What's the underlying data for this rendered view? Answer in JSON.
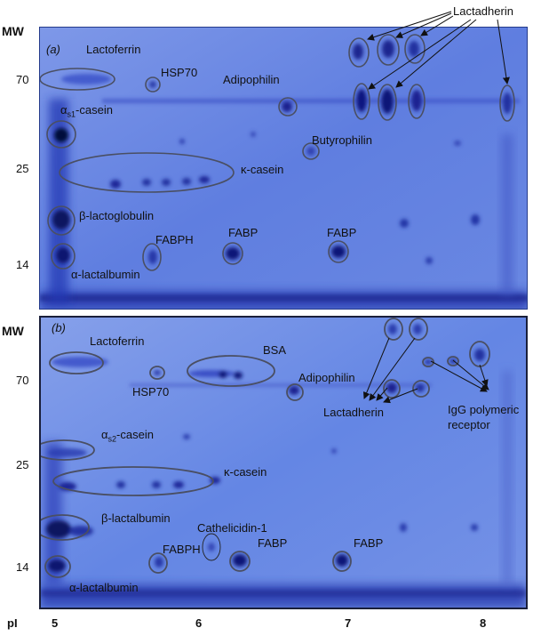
{
  "axis": {
    "mw_label": "MW",
    "pi_label": "pI",
    "pi_ticks": [
      "5",
      "6",
      "7",
      "8"
    ]
  },
  "panel_a": {
    "label": "(a)",
    "mw_ticks": [
      "70",
      "25",
      "14"
    ],
    "proteins": {
      "lactoferrin": "Lactoferrin",
      "hsp70": "HSP70",
      "adipophilin": "Adipophilin",
      "alpha_s1_casein": "α",
      "alpha_s1_sub": "s1",
      "alpha_s1_suffix": "-casein",
      "butyrophilin": "Butyrophilin",
      "kappa_casein": "κ-casein",
      "beta_lactoglobulin": "β-lactoglobulin",
      "fabph": "FABPH",
      "fabp_1": "FABP",
      "fabp_2": "FABP",
      "alpha_lactalbumin": "α-lactalbumin",
      "lactadherin": "Lactadherin"
    }
  },
  "panel_b": {
    "label": "(b)",
    "mw_ticks": [
      "70",
      "25",
      "14"
    ],
    "proteins": {
      "lactoferrin": "Lactoferrin",
      "bsa": "BSA",
      "hsp70": "HSP70",
      "adipophilin": "Adipophilin",
      "lactadherin": "Lactadherin",
      "igg_line1": "IgG polymeric",
      "igg_line2": "receptor",
      "alpha_s2_casein": "α",
      "alpha_s2_sub": "s2",
      "alpha_s2_suffix": "-casein",
      "kappa_casein": "κ-casein",
      "beta_lactalbumin": "β-lactalbumin",
      "cathelicidin": "Cathelicidin-1",
      "fabph": "FABPH",
      "fabp_1": "FABP",
      "fabp_2": "FABP",
      "alpha_lactalbumin": "α-lactalbumin"
    }
  },
  "colors": {
    "gel_background": "#5f7fe0",
    "spot_dark": "#101a78",
    "outline": "#4a4f63"
  }
}
